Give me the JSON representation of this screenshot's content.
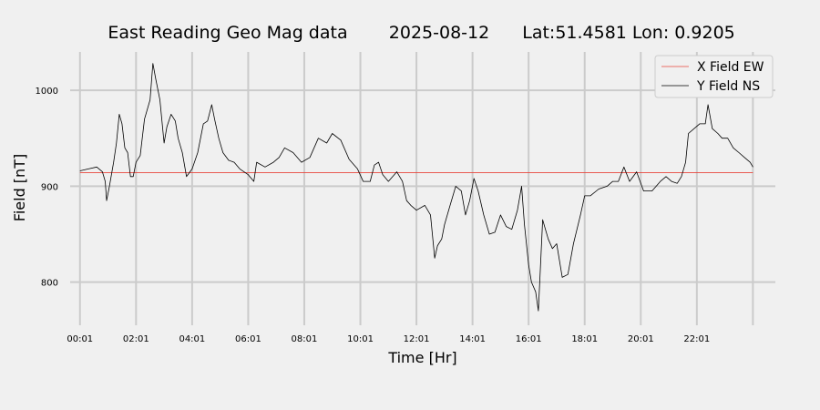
{
  "chart_data": {
    "type": "line",
    "title": "East Reading Geo Mag data",
    "date": "2025-08-12",
    "location": "Lat:51.4581  Lon: 0.9205",
    "xlabel": "Time  [Hr]",
    "ylabel": "Field  [nT]",
    "xlim": [
      -0.35,
      24.8
    ],
    "ylim": [
      755,
      1040
    ],
    "grid": true,
    "legend_position": "upper-right",
    "x_ticks": [
      {
        "x": 0,
        "label": "00:01"
      },
      {
        "x": 2,
        "label": "02:01"
      },
      {
        "x": 4,
        "label": "04:01"
      },
      {
        "x": 6,
        "label": "06:01"
      },
      {
        "x": 8,
        "label": "08:01"
      },
      {
        "x": 10,
        "label": "10:01"
      },
      {
        "x": 12,
        "label": "12:01"
      },
      {
        "x": 14,
        "label": "14:01"
      },
      {
        "x": 16,
        "label": "16:01"
      },
      {
        "x": 18,
        "label": "18:01"
      },
      {
        "x": 20,
        "label": "20:01"
      },
      {
        "x": 22,
        "label": "22:01"
      },
      {
        "x": 24,
        "label": ""
      }
    ],
    "y_ticks": [
      {
        "y": 800,
        "label": "800"
      },
      {
        "y": 900,
        "label": "900"
      },
      {
        "y": 1000,
        "label": "1000"
      }
    ],
    "series": [
      {
        "name": "X Field EW",
        "color": "#e8453c",
        "points": [
          [
            0,
            914
          ],
          [
            24,
            914
          ]
        ]
      },
      {
        "name": "Y Field NS",
        "color": "#000000",
        "points": [
          [
            0.0,
            916
          ],
          [
            0.3,
            918
          ],
          [
            0.6,
            920
          ],
          [
            0.8,
            915
          ],
          [
            0.9,
            905
          ],
          [
            0.95,
            885
          ],
          [
            1.05,
            900
          ],
          [
            1.2,
            925
          ],
          [
            1.3,
            945
          ],
          [
            1.4,
            975
          ],
          [
            1.5,
            965
          ],
          [
            1.6,
            940
          ],
          [
            1.7,
            935
          ],
          [
            1.8,
            910
          ],
          [
            1.9,
            910
          ],
          [
            2.0,
            925
          ],
          [
            2.15,
            932
          ],
          [
            2.3,
            970
          ],
          [
            2.5,
            990
          ],
          [
            2.6,
            1028
          ],
          [
            2.7,
            1012
          ],
          [
            2.85,
            990
          ],
          [
            3.0,
            945
          ],
          [
            3.1,
            962
          ],
          [
            3.25,
            975
          ],
          [
            3.4,
            968
          ],
          [
            3.5,
            950
          ],
          [
            3.65,
            935
          ],
          [
            3.8,
            910
          ],
          [
            4.0,
            918
          ],
          [
            4.2,
            935
          ],
          [
            4.4,
            965
          ],
          [
            4.55,
            968
          ],
          [
            4.7,
            985
          ],
          [
            4.8,
            970
          ],
          [
            4.95,
            950
          ],
          [
            5.1,
            935
          ],
          [
            5.3,
            927
          ],
          [
            5.5,
            925
          ],
          [
            5.7,
            918
          ],
          [
            6.0,
            912
          ],
          [
            6.2,
            905
          ],
          [
            6.3,
            925
          ],
          [
            6.6,
            920
          ],
          [
            6.9,
            925
          ],
          [
            7.1,
            930
          ],
          [
            7.3,
            940
          ],
          [
            7.6,
            935
          ],
          [
            7.9,
            925
          ],
          [
            8.2,
            930
          ],
          [
            8.5,
            950
          ],
          [
            8.8,
            945
          ],
          [
            9.0,
            955
          ],
          [
            9.3,
            948
          ],
          [
            9.6,
            928
          ],
          [
            9.9,
            918
          ],
          [
            10.1,
            905
          ],
          [
            10.35,
            905
          ],
          [
            10.5,
            922
          ],
          [
            10.65,
            925
          ],
          [
            10.8,
            912
          ],
          [
            11.0,
            905
          ],
          [
            11.3,
            915
          ],
          [
            11.5,
            905
          ],
          [
            11.65,
            885
          ],
          [
            11.8,
            880
          ],
          [
            12.0,
            875
          ],
          [
            12.3,
            880
          ],
          [
            12.5,
            870
          ],
          [
            12.65,
            825
          ],
          [
            12.75,
            838
          ],
          [
            12.9,
            845
          ],
          [
            13.0,
            860
          ],
          [
            13.2,
            880
          ],
          [
            13.4,
            900
          ],
          [
            13.6,
            895
          ],
          [
            13.75,
            870
          ],
          [
            13.9,
            885
          ],
          [
            14.05,
            908
          ],
          [
            14.2,
            895
          ],
          [
            14.4,
            870
          ],
          [
            14.6,
            850
          ],
          [
            14.8,
            852
          ],
          [
            15.0,
            870
          ],
          [
            15.2,
            858
          ],
          [
            15.4,
            855
          ],
          [
            15.6,
            875
          ],
          [
            15.75,
            900
          ],
          [
            15.85,
            860
          ],
          [
            16.0,
            818
          ],
          [
            16.1,
            800
          ],
          [
            16.25,
            790
          ],
          [
            16.35,
            770
          ],
          [
            16.5,
            865
          ],
          [
            16.7,
            845
          ],
          [
            16.85,
            835
          ],
          [
            17.0,
            840
          ],
          [
            17.2,
            805
          ],
          [
            17.4,
            808
          ],
          [
            17.6,
            840
          ],
          [
            17.85,
            870
          ],
          [
            18.0,
            890
          ],
          [
            18.2,
            890
          ],
          [
            18.5,
            897
          ],
          [
            18.8,
            900
          ],
          [
            19.0,
            905
          ],
          [
            19.2,
            905
          ],
          [
            19.4,
            920
          ],
          [
            19.6,
            905
          ],
          [
            19.85,
            915
          ],
          [
            20.1,
            895
          ],
          [
            20.4,
            895
          ],
          [
            20.7,
            905
          ],
          [
            20.9,
            910
          ],
          [
            21.1,
            905
          ],
          [
            21.3,
            903
          ],
          [
            21.45,
            910
          ],
          [
            21.6,
            925
          ],
          [
            21.7,
            955
          ],
          [
            21.9,
            960
          ],
          [
            22.1,
            965
          ],
          [
            22.3,
            965
          ],
          [
            22.4,
            985
          ],
          [
            22.55,
            960
          ],
          [
            22.75,
            955
          ],
          [
            22.9,
            950
          ],
          [
            23.1,
            950
          ],
          [
            23.3,
            940
          ],
          [
            23.5,
            935
          ],
          [
            23.7,
            930
          ],
          [
            23.9,
            925
          ],
          [
            24.0,
            920
          ]
        ]
      }
    ]
  }
}
